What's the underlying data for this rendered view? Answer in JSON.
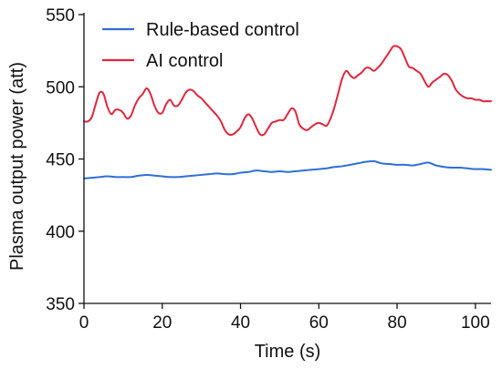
{
  "chart_data": {
    "type": "line",
    "title": "",
    "xlabel": "Time (s)",
    "ylabel": "Plasma output power (att)",
    "xlim": [
      0,
      104
    ],
    "ylim": [
      350,
      550
    ],
    "xticks": [
      0,
      20,
      40,
      60,
      80,
      100
    ],
    "yticks": [
      350,
      400,
      450,
      500,
      550
    ],
    "grid": false,
    "legend_position": "top-left",
    "series": [
      {
        "name": "Rule-based control",
        "color": "#2f6fd6",
        "x": [
          0,
          2,
          4,
          6,
          8,
          10,
          12,
          14,
          16,
          18,
          20,
          22,
          24,
          26,
          28,
          30,
          32,
          34,
          36,
          38,
          40,
          42,
          44,
          46,
          48,
          50,
          52,
          54,
          56,
          58,
          60,
          62,
          64,
          66,
          68,
          70,
          72,
          74,
          76,
          78,
          80,
          82,
          84,
          86,
          88,
          90,
          92,
          94,
          96,
          98,
          100,
          102,
          104
        ],
        "y": [
          436.5,
          437,
          437.5,
          438,
          437.5,
          437.5,
          437.5,
          438.5,
          439,
          438.5,
          438,
          437.5,
          437.5,
          438,
          438.5,
          439,
          439.5,
          440,
          439.5,
          439.5,
          440.5,
          441,
          442,
          441.5,
          441,
          441.5,
          441,
          441.5,
          442,
          442.5,
          443,
          443.5,
          444.5,
          445,
          446,
          447,
          448,
          448.5,
          447,
          446.5,
          446,
          446,
          445.5,
          446.5,
          447.5,
          445.5,
          444.5,
          444,
          444,
          443.5,
          443,
          443,
          442.5
        ]
      },
      {
        "name": "AI control",
        "color": "#e0263b",
        "x": [
          0,
          1,
          2,
          3,
          4,
          5,
          6,
          7,
          8,
          9,
          10,
          11,
          12,
          13,
          14,
          15,
          16,
          17,
          18,
          19,
          20,
          21,
          22,
          23,
          24,
          25,
          26,
          27,
          28,
          29,
          30,
          31,
          32,
          33,
          34,
          35,
          36,
          37,
          38,
          39,
          40,
          41,
          42,
          43,
          44,
          45,
          46,
          47,
          48,
          49,
          50,
          51,
          52,
          53,
          54,
          55,
          56,
          57,
          58,
          59,
          60,
          61,
          62,
          63,
          64,
          65,
          66,
          67,
          68,
          69,
          70,
          71,
          72,
          73,
          74,
          75,
          76,
          77,
          78,
          79,
          80,
          81,
          82,
          83,
          84,
          85,
          86,
          87,
          88,
          89,
          90,
          91,
          92,
          93,
          94,
          95,
          96,
          97,
          98,
          99,
          100,
          101,
          102,
          103,
          104
        ],
        "y": [
          476,
          476,
          479,
          488,
          496,
          495,
          486,
          481,
          484,
          484,
          482,
          478,
          480,
          487,
          492,
          495,
          499,
          495,
          487,
          482,
          482,
          488,
          491,
          487,
          487,
          491,
          496,
          498,
          497,
          494,
          492,
          489,
          486,
          483,
          480,
          476,
          470,
          467,
          467,
          469,
          472,
          478,
          481,
          478,
          472,
          467,
          467,
          471,
          475,
          476,
          477,
          477,
          481,
          485,
          483,
          474,
          471,
          470,
          472,
          474,
          475,
          474,
          473,
          478,
          486,
          496,
          506,
          511,
          508,
          506,
          508,
          510,
          513,
          513,
          511,
          513,
          516,
          520,
          524,
          528,
          528,
          526,
          520,
          514,
          513,
          511,
          509,
          504,
          500,
          503,
          505,
          507,
          509,
          508,
          504,
          498,
          495,
          493,
          492,
          492,
          491,
          491,
          490,
          490,
          490
        ]
      }
    ]
  }
}
